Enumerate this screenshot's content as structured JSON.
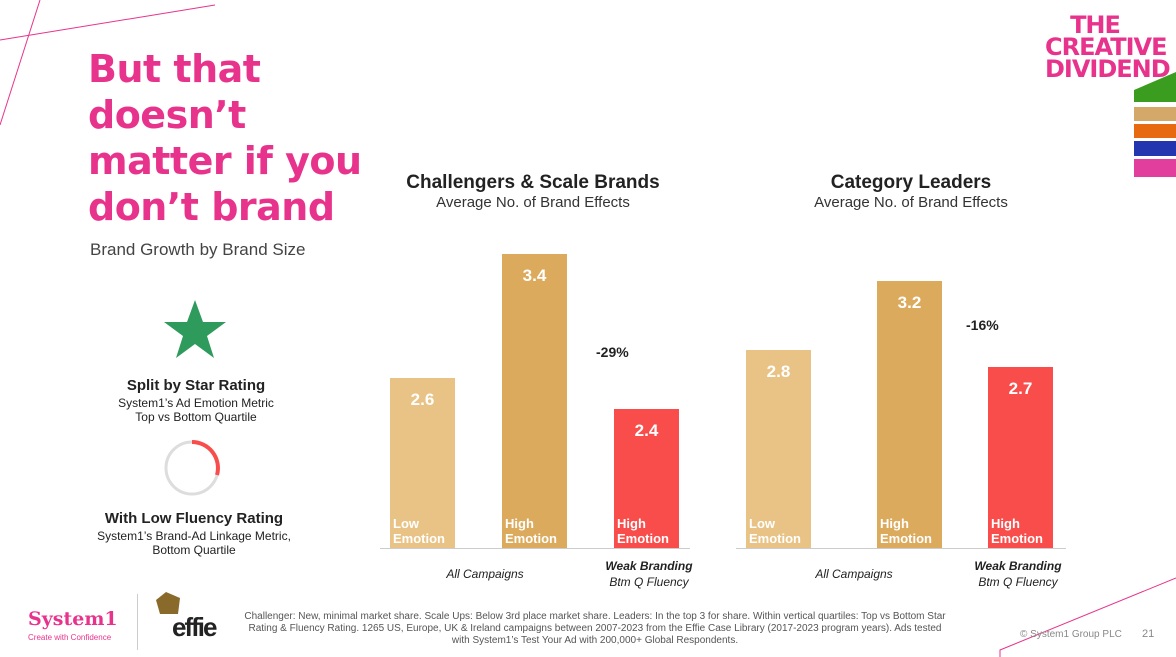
{
  "headline": "But that doesn’t matter if you don’t brand",
  "subhead": "Brand Growth by Brand Size",
  "legend": {
    "star_title": "Split by Star Rating",
    "star_desc1": "System1’s Ad Emotion Metric",
    "star_desc2": "Top vs Bottom Quartile",
    "fluency_title": "With Low Fluency Rating",
    "fluency_desc1": "System1’s Brand-Ad Linkage Metric,",
    "fluency_desc2": "Bottom Quartile"
  },
  "logo": {
    "brand": "THE CREATIVE DIVIDEND",
    "system1": "System1",
    "system1_tag": "Create with Confidence",
    "effie": "effie"
  },
  "colors": {
    "low": "#e8c385",
    "high": "#dcaa5c",
    "weak": "#f84d4b",
    "pink": "#e8338c"
  },
  "chart_data": [
    {
      "type": "bar",
      "title": "Challengers & Scale Brands",
      "subtitle": "Average No. of Brand Effects",
      "ylim": [
        1.5,
        3.5
      ],
      "bars": [
        {
          "label1": "Low",
          "label2": "Emotion",
          "value": 2.6,
          "color": "#e8c385"
        },
        {
          "label1": "High",
          "label2": "Emotion",
          "value": 3.4,
          "color": "#dcaa5c"
        },
        {
          "label1": "High",
          "label2": "Emotion",
          "value": 2.4,
          "color": "#f84d4b"
        }
      ],
      "change": "-29%",
      "group1": "All Campaigns",
      "group2_title": "Weak Branding",
      "group2_sub": "Btm Q Fluency"
    },
    {
      "type": "bar",
      "title": "Category Leaders",
      "subtitle": "Average No. of Brand Effects",
      "ylim": [
        1.65,
        3.45
      ],
      "bars": [
        {
          "label1": "Low",
          "label2": "Emotion",
          "value": 2.8,
          "color": "#e8c385"
        },
        {
          "label1": "High",
          "label2": "Emotion",
          "value": 3.2,
          "color": "#dcaa5c"
        },
        {
          "label1": "High",
          "label2": "Emotion",
          "value": 2.7,
          "color": "#f84d4b"
        }
      ],
      "change": "-16%",
      "group1": "All Campaigns",
      "group2_title": "Weak Branding",
      "group2_sub": "Btm Q Fluency"
    }
  ],
  "footnote": "Challenger: New, minimal market share. Scale Ups: Below 3rd place market share. Leaders: In the top 3 for share. Within vertical quartiles: Top vs Bottom Star Rating & Fluency Rating. 1265 US, Europe, UK & Ireland campaigns between 2007-2023 from the Effie Case Library (2017-2023 program years). Ads tested with System1’s Test Your Ad with 200,000+ Global Respondents.",
  "copyright": "© System1 Group PLC",
  "page_number": "21"
}
